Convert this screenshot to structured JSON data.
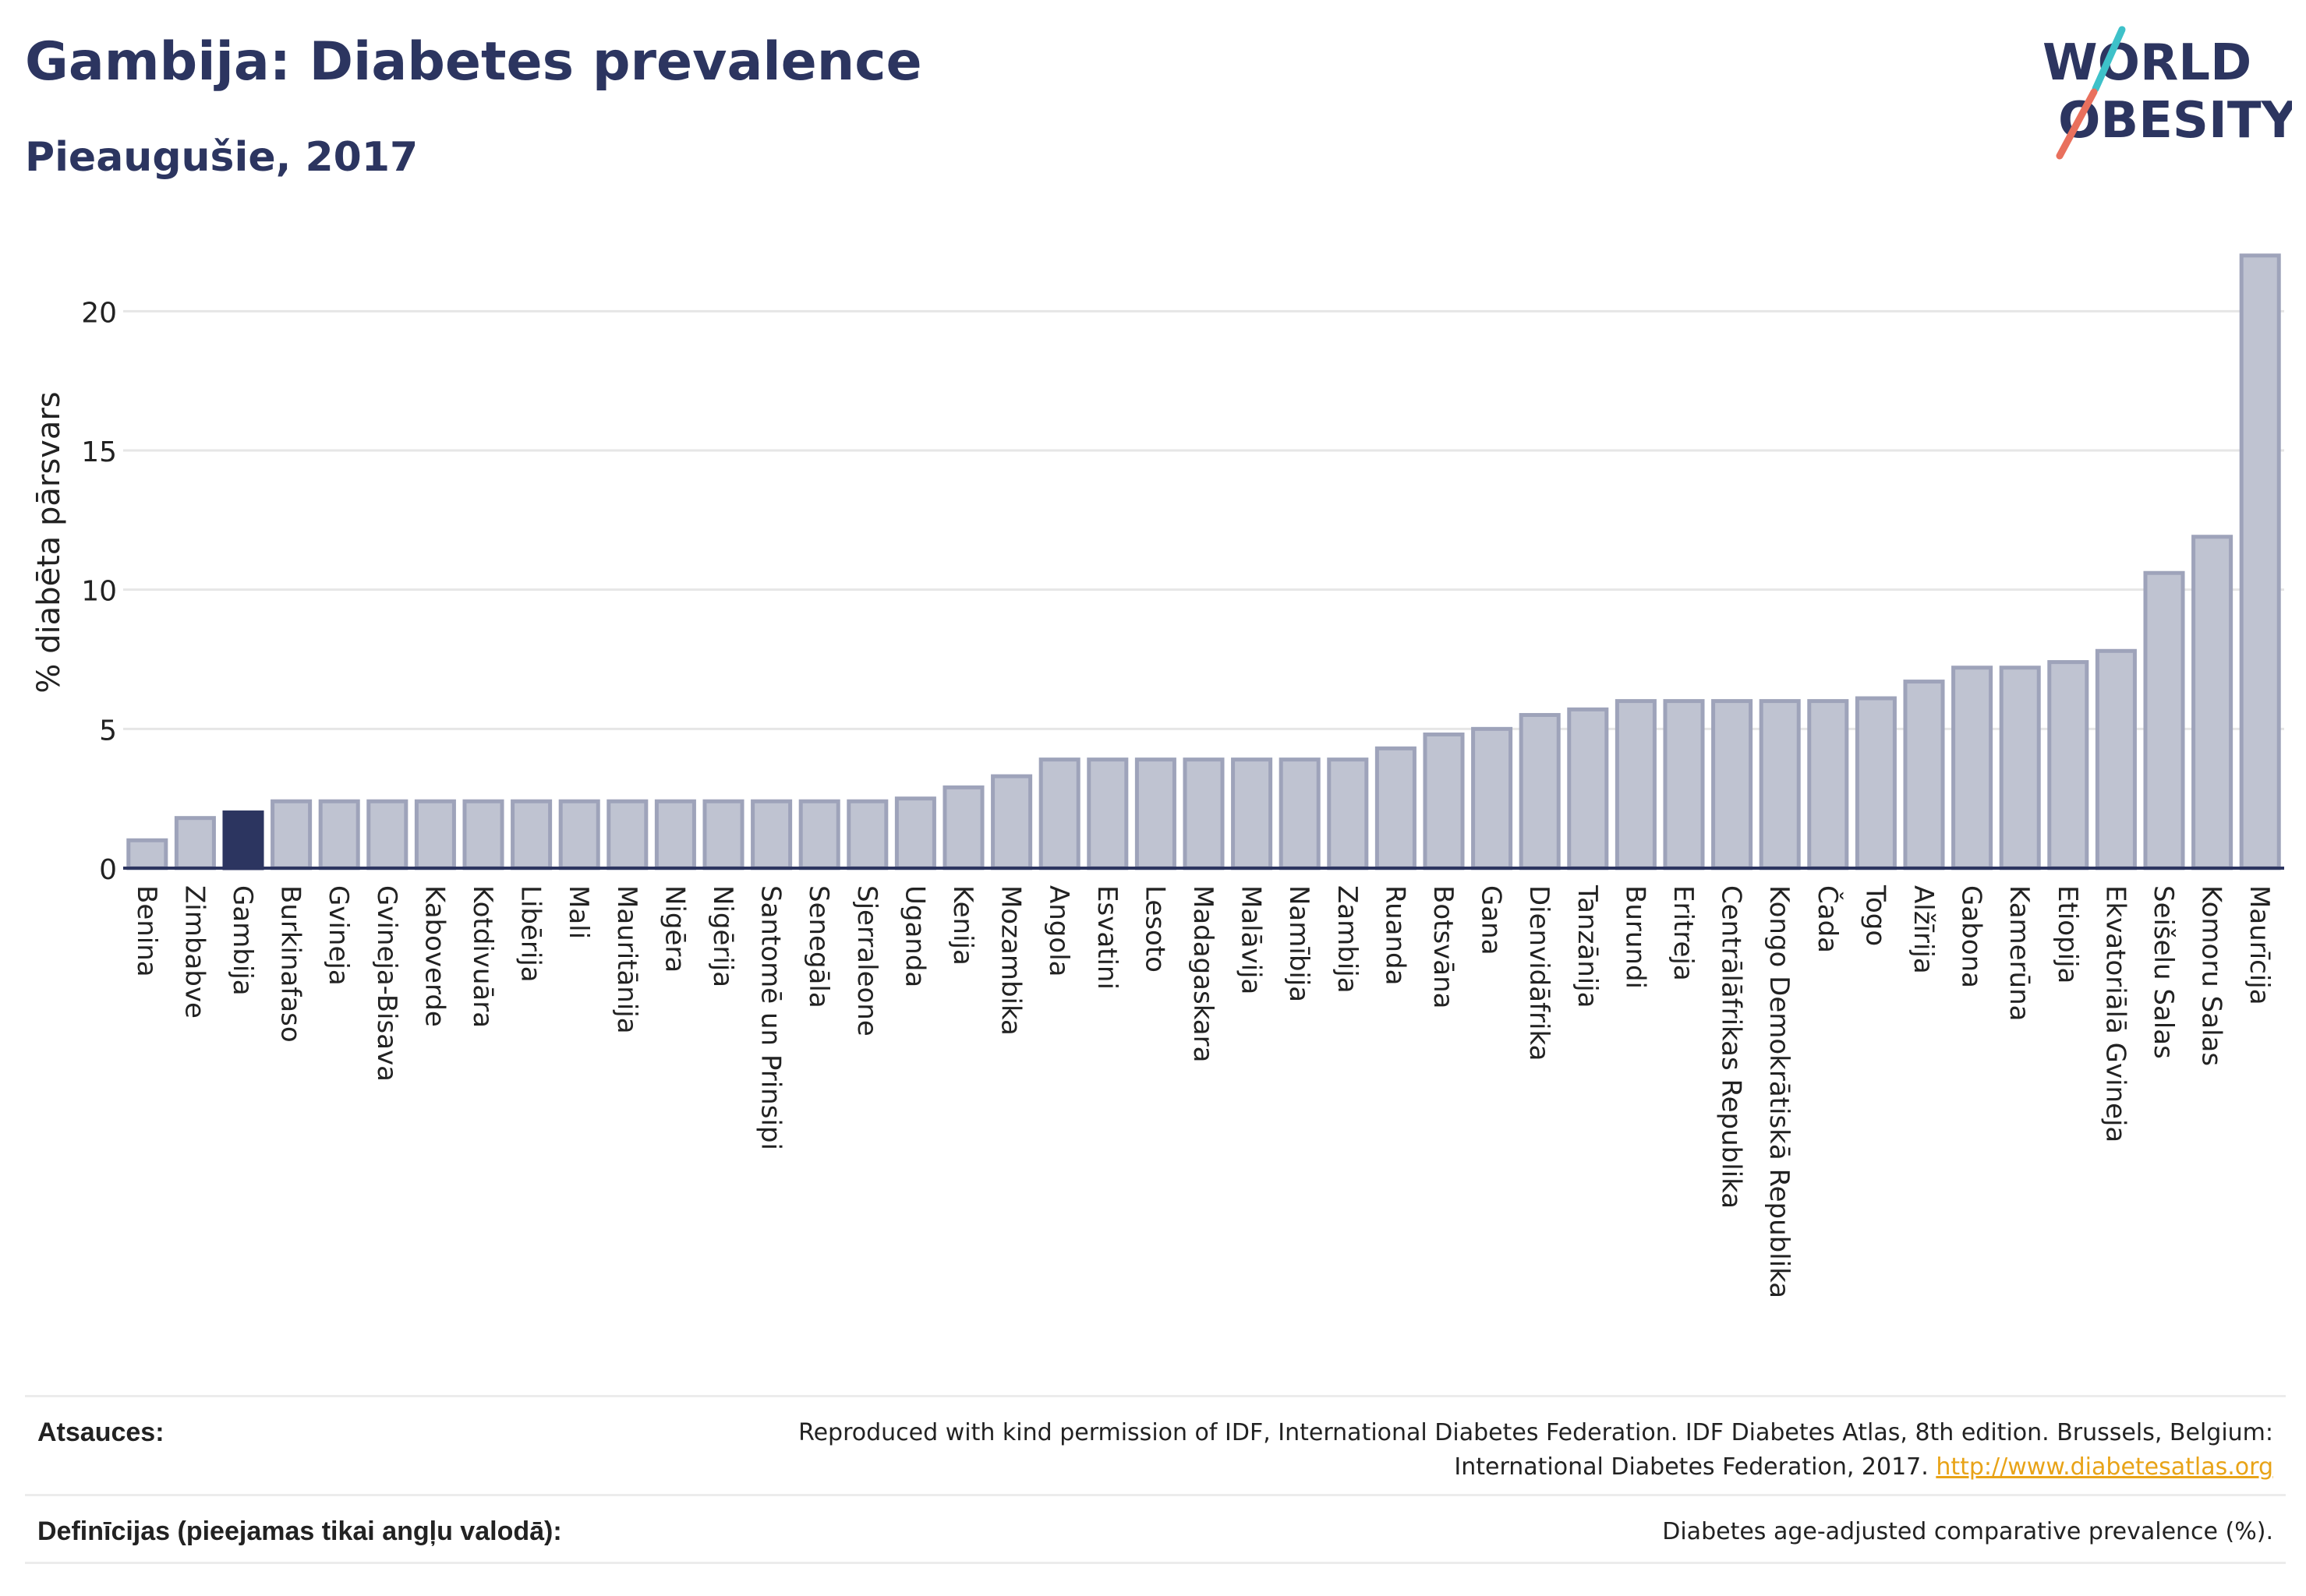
{
  "header": {
    "title": "Gambija: Diabetes prevalence",
    "subtitle": "Pieaugušie, 2017"
  },
  "logo": {
    "line1": "WORLD",
    "line2": "OBESITY"
  },
  "colors": {
    "bar": "#bfc3d1",
    "bar_stroke": "#9ea3ba",
    "highlight": "#2c3560",
    "grid": "#e6e6e6",
    "axis": "#2c3560",
    "logo_teal": "#3ec1c9",
    "logo_coral": "#e9705d",
    "link": "#e8a317"
  },
  "chart_data": {
    "type": "bar",
    "ylabel": "% diabēta pārsvars",
    "ylim": [
      0,
      22.5
    ],
    "yticks": [
      0,
      5,
      10,
      15,
      20
    ],
    "grid": true,
    "highlight": "Gambija",
    "categories": [
      "Benina",
      "Zimbabve",
      "Gambija",
      "Burkinafaso",
      "Gvineja",
      "Gvineja-Bisava",
      "Kaboverde",
      "Kotdivuāra",
      "Libērija",
      "Mali",
      "Mauritānija",
      "Nigēra",
      "Nigērija",
      "Santomē un Prinsipi",
      "Senegāla",
      "Sjerraleone",
      "Uganda",
      "Kenija",
      "Mozambika",
      "Angola",
      "Esvatini",
      "Lesoto",
      "Madagaskara",
      "Malāvija",
      "Namībija",
      "Zambija",
      "Ruanda",
      "Botsvāna",
      "Gana",
      "Dienvidāfrika",
      "Tanzānija",
      "Burundi",
      "Eritreja",
      "Centrālāfrikas Republika",
      "Kongo Demokrātiskā Republika",
      "Čada",
      "Togo",
      "Alžīrija",
      "Gabona",
      "Kamerūna",
      "Etiopija",
      "Ekvatoriālā Gvineja",
      "Seišelu Salas",
      "Komoru Salas",
      "Maurīcija"
    ],
    "values": [
      1.0,
      1.8,
      2.0,
      2.4,
      2.4,
      2.4,
      2.4,
      2.4,
      2.4,
      2.4,
      2.4,
      2.4,
      2.4,
      2.4,
      2.4,
      2.4,
      2.5,
      2.9,
      3.3,
      3.9,
      3.9,
      3.9,
      3.9,
      3.9,
      3.9,
      3.9,
      4.3,
      4.8,
      5.0,
      5.5,
      5.7,
      6.0,
      6.0,
      6.0,
      6.0,
      6.0,
      6.1,
      6.7,
      7.2,
      7.2,
      7.4,
      7.8,
      10.6,
      11.9,
      22.0
    ]
  },
  "footer": {
    "sources_label": "Atsauces:",
    "sources_text": "Reproduced with kind permission of IDF, International Diabetes Federation. IDF Diabetes Atlas, 8th edition. Brussels, Belgium: International Diabetes Federation, 2017.",
    "sources_link": "http://www.diabetesatlas.org",
    "definitions_label": "Definīcijas (pieejamas tikai angļu valodā):",
    "definitions_text": "Diabetes age-adjusted comparative prevalence (%)."
  }
}
